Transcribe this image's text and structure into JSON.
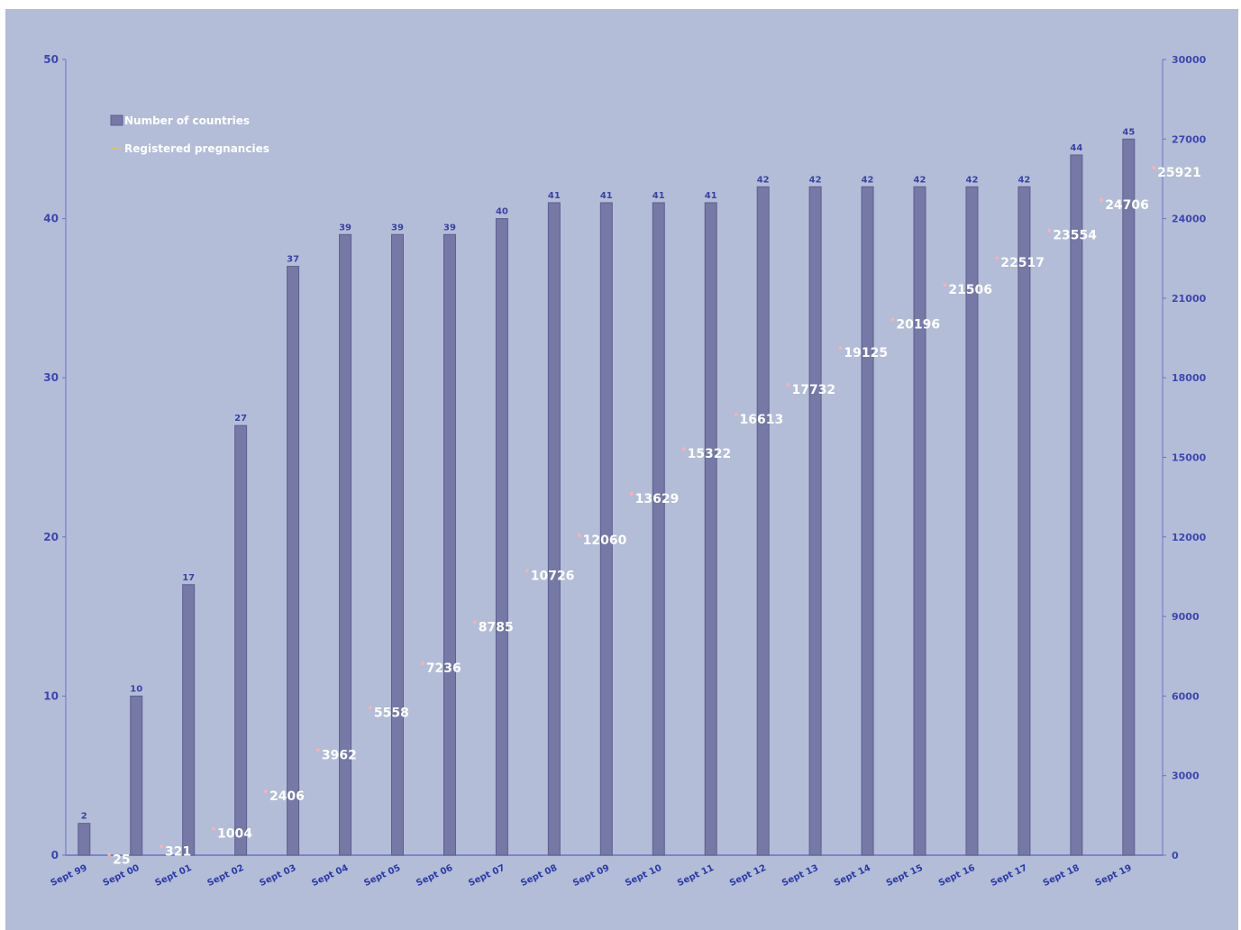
{
  "colors": {
    "background": "#b4bdd7",
    "bar_fill": "#7679a6",
    "bar_stroke": "#5b5e90",
    "axis": "#6a72c6",
    "tick_text": "#3d47b0",
    "point": "#ffb0b0",
    "line_label": "#ffffff"
  },
  "chart_data": {
    "type": "bar",
    "title": "",
    "xlabel": "",
    "ylabel": "",
    "categories": [
      "Sept 99",
      "Sept 00",
      "Sept 01",
      "Sept 02",
      "Sept 03",
      "Sept 04",
      "Sept 05",
      "Sept 06",
      "Sept 07",
      "Sept 08",
      "Sept 09",
      "Sept 10",
      "Sept 11",
      "Sept 12",
      "Sept 13",
      "Sept 14",
      "Sept 15",
      "Sept 16",
      "Sept 17",
      "Sept 18",
      "Sept 19"
    ],
    "series": [
      {
        "name": "Number of countries",
        "type": "bar",
        "axis": "left",
        "values": [
          2,
          10,
          17,
          27,
          37,
          39,
          39,
          39,
          40,
          41,
          41,
          41,
          41,
          42,
          42,
          42,
          42,
          42,
          42,
          44,
          45
        ]
      },
      {
        "name": "Registered pregnancies",
        "type": "point",
        "axis": "right",
        "values": [
          25,
          321,
          1004,
          2406,
          3962,
          5558,
          7236,
          8785,
          10726,
          12060,
          13629,
          15322,
          16613,
          17732,
          19125,
          20196,
          21506,
          22517,
          23554,
          24706,
          25921
        ]
      }
    ],
    "ylim": [
      0,
      50
    ],
    "yticks": [
      "0",
      "10",
      "20",
      "30",
      "40",
      "50"
    ],
    "y2lim": [
      0,
      30000
    ],
    "y2ticks": [
      "0",
      "3000",
      "6000",
      "9000",
      "12000",
      "15000",
      "18000",
      "21000",
      "24000",
      "27000",
      "30000"
    ],
    "legend_position": "top-left",
    "grid": false
  }
}
